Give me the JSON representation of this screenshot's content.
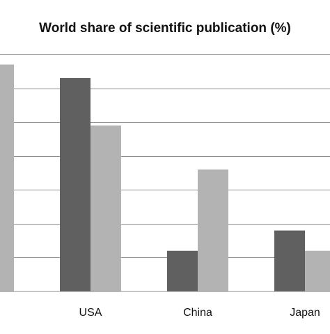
{
  "chart_data": {
    "type": "bar",
    "title": "World share of scientific publication (%)",
    "categories": [
      "",
      "USA",
      "China",
      "Japan"
    ],
    "series": [
      {
        "values": [
          null,
          31.5,
          6.0,
          9.0
        ]
      },
      {
        "values": [
          33.5,
          24.5,
          18.0,
          6.0
        ]
      }
    ],
    "ylim": [
      0,
      35
    ],
    "grid": true,
    "colors": [
      "#606060",
      "#b3b3b3"
    ]
  }
}
